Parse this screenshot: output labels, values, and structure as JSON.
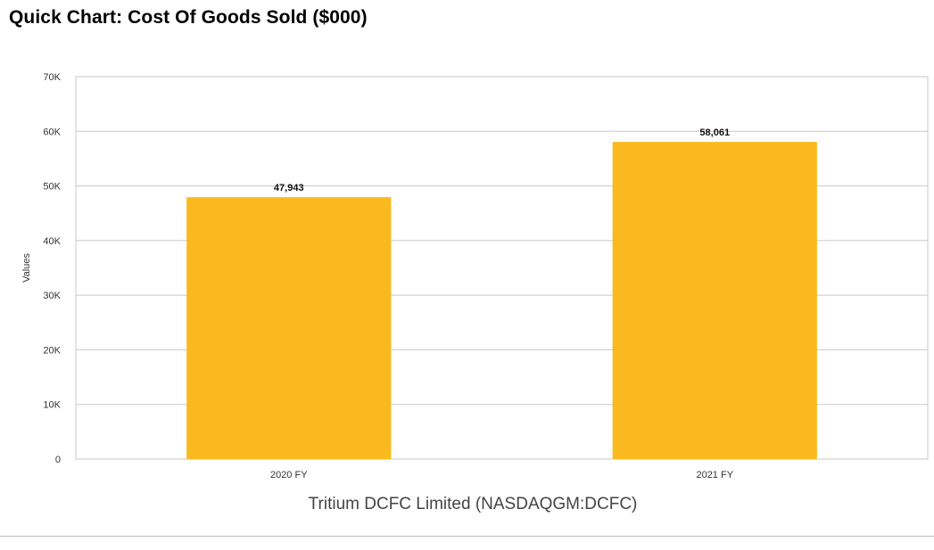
{
  "page": {
    "title": "Quick Chart: Cost Of Goods Sold ($000)"
  },
  "chart_data": {
    "type": "bar",
    "title": "Quick Chart: Cost Of Goods Sold ($000)",
    "categories": [
      "2020 FY",
      "2021 FY"
    ],
    "values": [
      47943,
      58061
    ],
    "data_labels": [
      "47,943",
      "58,061"
    ],
    "ylabel": "Values",
    "xlabel": "Tritium DCFC Limited (NASDAQGM:DCFC)",
    "ylim": [
      0,
      70000
    ],
    "yticks": [
      0,
      10000,
      20000,
      30000,
      40000,
      50000,
      60000,
      70000
    ],
    "ytick_labels": [
      "0",
      "10K",
      "20K",
      "30K",
      "40K",
      "50K",
      "60K",
      "70K"
    ],
    "grid": true,
    "bar_color": "#FAB91E"
  }
}
